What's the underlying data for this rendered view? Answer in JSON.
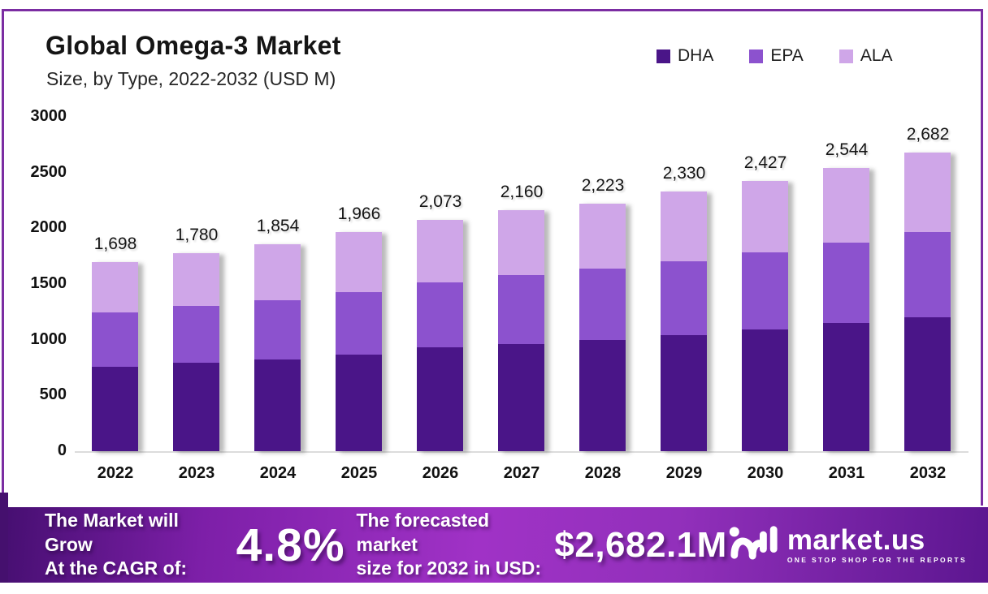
{
  "header": {
    "title": "Global Omega-3 Market",
    "subtitle": "Size, by Type, 2022-2032 (USD M)"
  },
  "chart_data": {
    "type": "bar",
    "stacked": true,
    "title": "Global Omega-3 Market",
    "subtitle": "Size, by Type, 2022-2032 (USD M)",
    "unit": "USD M",
    "categories": [
      "2022",
      "2023",
      "2024",
      "2025",
      "2026",
      "2027",
      "2028",
      "2029",
      "2030",
      "2031",
      "2032"
    ],
    "series": [
      {
        "name": "DHA",
        "color": "#4a1588",
        "values": [
          760,
          797,
          825,
          868,
          933,
          964,
          996,
          1039,
          1089,
          1150,
          1198
        ]
      },
      {
        "name": "EPA",
        "color": "#8c52ce",
        "values": [
          485,
          505,
          529,
          559,
          582,
          617,
          640,
          663,
          693,
          718,
          771
        ]
      },
      {
        "name": "ALA",
        "color": "#cfa6e8",
        "values": [
          453,
          478,
          500,
          539,
          558,
          579,
          587,
          628,
          645,
          676,
          713
        ]
      }
    ],
    "totals": [
      1698,
      1780,
      1854,
      1966,
      2073,
      2160,
      2223,
      2330,
      2427,
      2544,
      2682
    ],
    "total_labels": [
      "1,698",
      "1,780",
      "1,854",
      "1,966",
      "2,073",
      "2,160",
      "2,223",
      "2,330",
      "2,427",
      "2,544",
      "2,682"
    ],
    "ylim": [
      0,
      3000
    ],
    "yticks": [
      0,
      500,
      1000,
      1500,
      2000,
      2500,
      3000
    ],
    "ytick_labels": [
      "0",
      "500",
      "1000",
      "1500",
      "2000",
      "2500",
      "3000"
    ],
    "grid": false,
    "legend_position": "top-right"
  },
  "banner": {
    "cagr_label_line1": "The Market will Grow",
    "cagr_label_line2": "At the CAGR of:",
    "cagr_value": "4.8%",
    "forecast_label_line1": "The forecasted market",
    "forecast_label_line2": "size for 2032 in USD:",
    "forecast_value": "$2,682.1M",
    "brand": {
      "name": "market.us",
      "tagline": "ONE STOP SHOP FOR THE REPORTS"
    }
  },
  "colors": {
    "frame_border": "#7b2da2",
    "banner_gradient_start": "#470f72",
    "banner_gradient_mid": "#a032c6",
    "banner_gradient_end": "#5c1690",
    "accent_strip": "#45106e"
  }
}
